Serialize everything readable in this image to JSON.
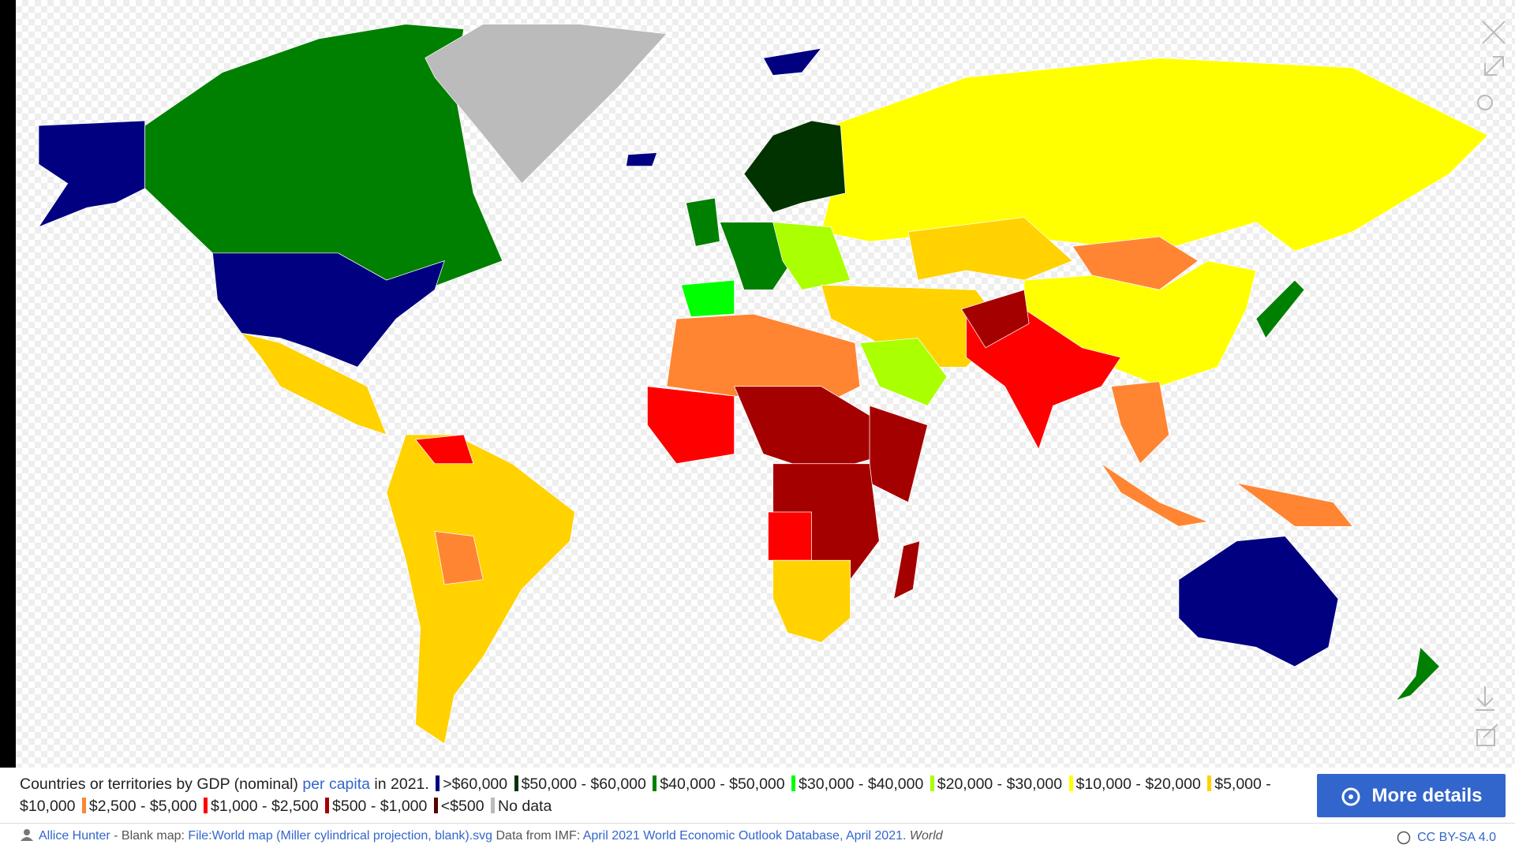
{
  "caption": {
    "prefix": "Countries or territories by GDP (nominal)",
    "link": "per capita",
    "suffix": "in 2021.",
    "legend": [
      {
        "color": "#000080",
        "label": ">$60,000"
      },
      {
        "color": "#003300",
        "label": "$50,000 - $60,000"
      },
      {
        "color": "#008000",
        "label": "$40,000 - $50,000"
      },
      {
        "color": "#00ff00",
        "label": "$30,000 - $40,000"
      },
      {
        "color": "#aaff00",
        "label": "$20,000 - $30,000"
      },
      {
        "color": "#ffff00",
        "label": "$10,000 - $20,000"
      },
      {
        "color": "#ffd200",
        "label": "$5,000 - $10,000"
      },
      {
        "color": "#ff8533",
        "label": "$2,500 - $5,000"
      },
      {
        "color": "#ff0000",
        "label": "$1,000 - $2,500"
      },
      {
        "color": "#a50000",
        "label": "$500 - $1,000"
      },
      {
        "color": "#5a0000",
        "label": "<$500"
      },
      {
        "color": "#bbbbbb",
        "label": "No data"
      }
    ]
  },
  "button": "More details",
  "credits": {
    "author": "Allice Hunter",
    "blank_map": "- Blank map:",
    "file_link": "File:World map (Miller cylindrical projection, blank).svg",
    "data_from": "Data from IMF:",
    "data_link": "April 2021 World Economic Outlook Database, April 2021",
    "period": ".",
    "collection": "World"
  },
  "license": "CC BY-SA 4.0"
}
